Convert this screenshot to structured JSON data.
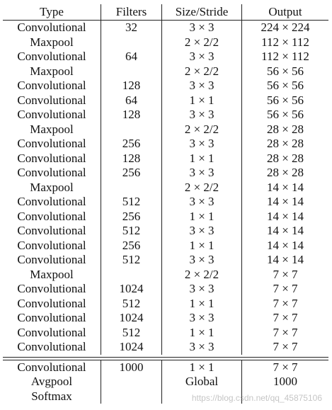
{
  "table": {
    "headers": [
      "Type",
      "Filters",
      "Size/Stride",
      "Output"
    ],
    "rows": [
      [
        "Convolutional",
        "32",
        "3 × 3",
        "224 × 224"
      ],
      [
        "Maxpool",
        "",
        "2 × 2/2",
        "112 × 112"
      ],
      [
        "Convolutional",
        "64",
        "3 × 3",
        "112 × 112"
      ],
      [
        "Maxpool",
        "",
        "2 × 2/2",
        "56 × 56"
      ],
      [
        "Convolutional",
        "128",
        "3 × 3",
        "56 × 56"
      ],
      [
        "Convolutional",
        "64",
        "1 × 1",
        "56 × 56"
      ],
      [
        "Convolutional",
        "128",
        "3 × 3",
        "56 × 56"
      ],
      [
        "Maxpool",
        "",
        "2 × 2/2",
        "28 × 28"
      ],
      [
        "Convolutional",
        "256",
        "3 × 3",
        "28 × 28"
      ],
      [
        "Convolutional",
        "128",
        "1 × 1",
        "28 × 28"
      ],
      [
        "Convolutional",
        "256",
        "3 × 3",
        "28 × 28"
      ],
      [
        "Maxpool",
        "",
        "2 × 2/2",
        "14 × 14"
      ],
      [
        "Convolutional",
        "512",
        "3 × 3",
        "14 × 14"
      ],
      [
        "Convolutional",
        "256",
        "1 × 1",
        "14 × 14"
      ],
      [
        "Convolutional",
        "512",
        "3 × 3",
        "14 × 14"
      ],
      [
        "Convolutional",
        "256",
        "1 × 1",
        "14 × 14"
      ],
      [
        "Convolutional",
        "512",
        "3 × 3",
        "14 × 14"
      ],
      [
        "Maxpool",
        "",
        "2 × 2/2",
        "7 × 7"
      ],
      [
        "Convolutional",
        "1024",
        "3 × 3",
        "7 × 7"
      ],
      [
        "Convolutional",
        "512",
        "1 × 1",
        "7 × 7"
      ],
      [
        "Convolutional",
        "1024",
        "3 × 3",
        "7 × 7"
      ],
      [
        "Convolutional",
        "512",
        "1 × 1",
        "7 × 7"
      ],
      [
        "Convolutional",
        "1024",
        "3 × 3",
        "7 × 7"
      ]
    ],
    "classifier_rows": [
      [
        "Convolutional",
        "1000",
        "1 × 1",
        "7 × 7"
      ],
      [
        "Avgpool",
        "",
        "Global",
        "1000"
      ],
      [
        "Softmax",
        "",
        "",
        ""
      ]
    ]
  },
  "watermark": "https://blog.csdn.net/qq_45875106"
}
